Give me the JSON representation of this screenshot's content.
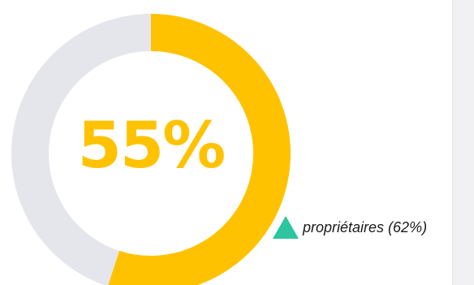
{
  "chart_data": {
    "type": "pie",
    "variant": "donut",
    "value_percent": 55,
    "remainder_percent": 45,
    "center_label": "55%",
    "annotation": {
      "marker": "triangle-up",
      "label": "propriétaires (62%)"
    },
    "colors": {
      "value": "#FFC200",
      "track": "#E5E6EC",
      "center_text": "#FFC200",
      "marker": "#2DC4A0"
    }
  }
}
